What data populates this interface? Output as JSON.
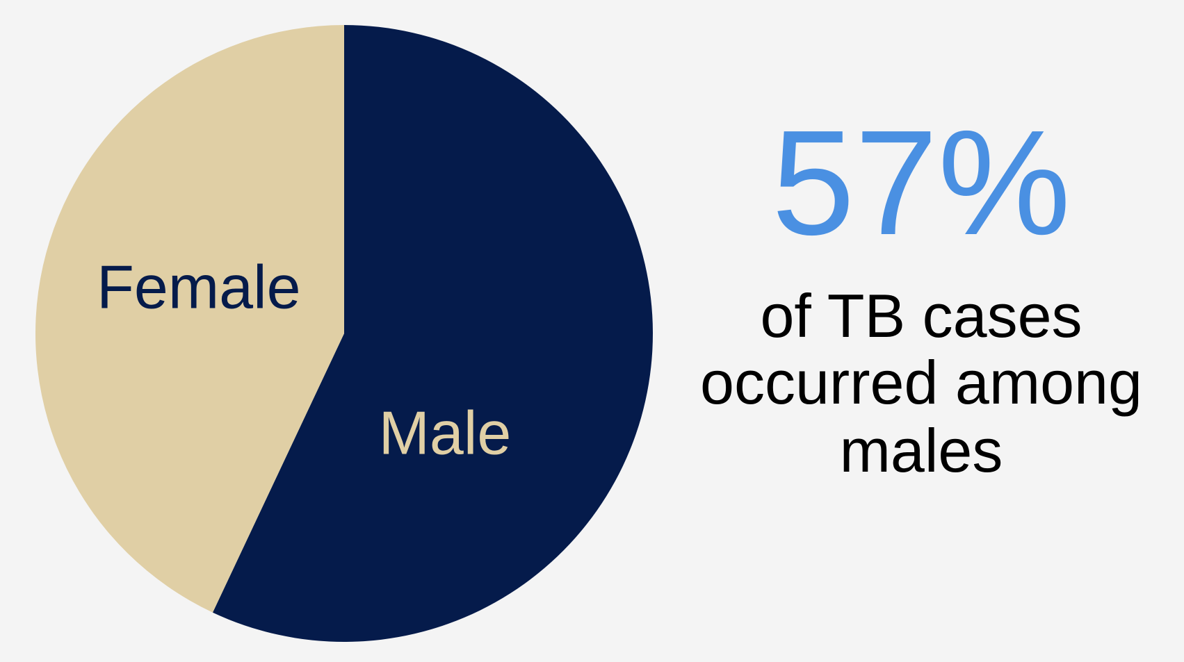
{
  "chart_data": {
    "type": "pie",
    "categories": [
      "Male",
      "Female"
    ],
    "values": [
      57,
      43
    ],
    "colors": [
      "#051b4b",
      "#e0cfa5"
    ],
    "label_colors": [
      "#e0cfa5",
      "#051b4b"
    ],
    "start": "top",
    "direction": "clockwise",
    "annotation": {
      "value_label": "57%",
      "color": "#4a90e2",
      "lines": [
        "of TB cases",
        "occurred among",
        "males"
      ],
      "text_color": "#000000"
    }
  }
}
